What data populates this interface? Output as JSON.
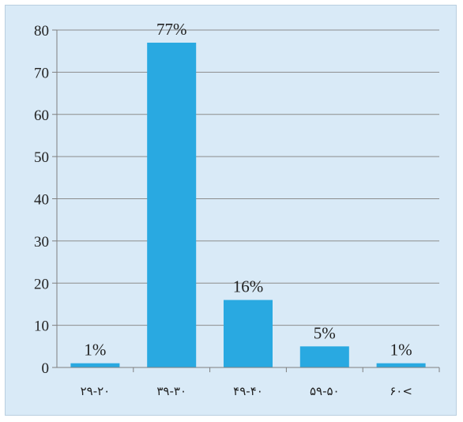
{
  "chart_data": {
    "type": "bar",
    "categories": [
      "۲۹-۲۰",
      "۳۹-۳۰",
      "۴۹-۴۰",
      "۵۹-۵۰",
      "۶۰<"
    ],
    "values": [
      1,
      77,
      16,
      5,
      1
    ],
    "data_labels": [
      "1%",
      "77%",
      "16%",
      "5%",
      "1%"
    ],
    "title": "",
    "xlabel": "",
    "ylabel": "",
    "ylim": [
      0,
      80
    ],
    "yticks": [
      0,
      10,
      20,
      30,
      40,
      50,
      60,
      70,
      80
    ],
    "grid": "horizontal",
    "legend": "none",
    "colors": {
      "bar": "#29a9e1",
      "background": "#d9eaf7",
      "grid": "#8c8c8c",
      "axis": "#7f7f7f"
    }
  }
}
